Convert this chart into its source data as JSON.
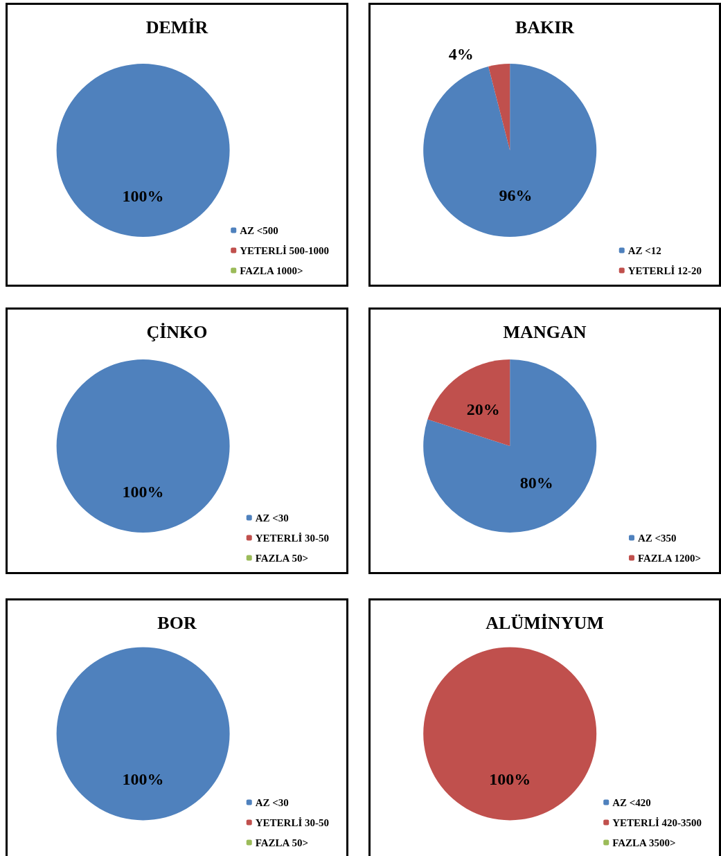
{
  "chart_data": [
    {
      "type": "pie",
      "title": "DEMİR",
      "categories": [
        "AZ <500",
        "YETERLİ 500-1000",
        "FAZLA 1000>"
      ],
      "values": [
        100,
        0,
        0
      ],
      "colors": [
        "#4f81bd",
        "#c0504d",
        "#9bbb59"
      ],
      "value_labels": [
        "100%",
        null,
        null
      ],
      "legend": "bottom right"
    },
    {
      "type": "pie",
      "title": "BAKIR",
      "categories": [
        "AZ <12",
        "YETERLİ 12-20"
      ],
      "values": [
        96,
        4
      ],
      "colors": [
        "#4f81bd",
        "#c0504d"
      ],
      "value_labels": [
        "96%",
        "4%"
      ],
      "legend": "bottom right"
    },
    {
      "type": "pie",
      "title": "ÇİNKO",
      "categories": [
        "AZ <30",
        "YETERLİ 30-50",
        "FAZLA 50>"
      ],
      "values": [
        100,
        0,
        0
      ],
      "colors": [
        "#4f81bd",
        "#c0504d",
        "#9bbb59"
      ],
      "value_labels": [
        "100%",
        null,
        null
      ],
      "legend": "bottom right"
    },
    {
      "type": "pie",
      "title": "MANGAN",
      "categories": [
        "AZ <350",
        "FAZLA 1200>"
      ],
      "values": [
        80,
        20
      ],
      "colors": [
        "#4f81bd",
        "#c0504d"
      ],
      "value_labels": [
        "80%",
        "20%"
      ],
      "legend": "bottom right"
    },
    {
      "type": "pie",
      "title": "BOR",
      "categories": [
        "AZ <30",
        "YETERLİ 30-50",
        "FAZLA 50>"
      ],
      "values": [
        100,
        0,
        0
      ],
      "colors": [
        "#4f81bd",
        "#c0504d",
        "#9bbb59"
      ],
      "value_labels": [
        "100%",
        null,
        null
      ],
      "legend": "bottom right"
    },
    {
      "type": "pie",
      "title": "ALÜMİNYUM",
      "categories": [
        "AZ <420",
        "YETERLİ 420-3500",
        "FAZLA 3500>"
      ],
      "values": [
        0,
        100,
        0
      ],
      "colors": [
        "#4f81bd",
        "#c0504d",
        "#9bbb59"
      ],
      "value_labels": [
        null,
        "100%",
        null
      ],
      "legend": "bottom right"
    }
  ]
}
